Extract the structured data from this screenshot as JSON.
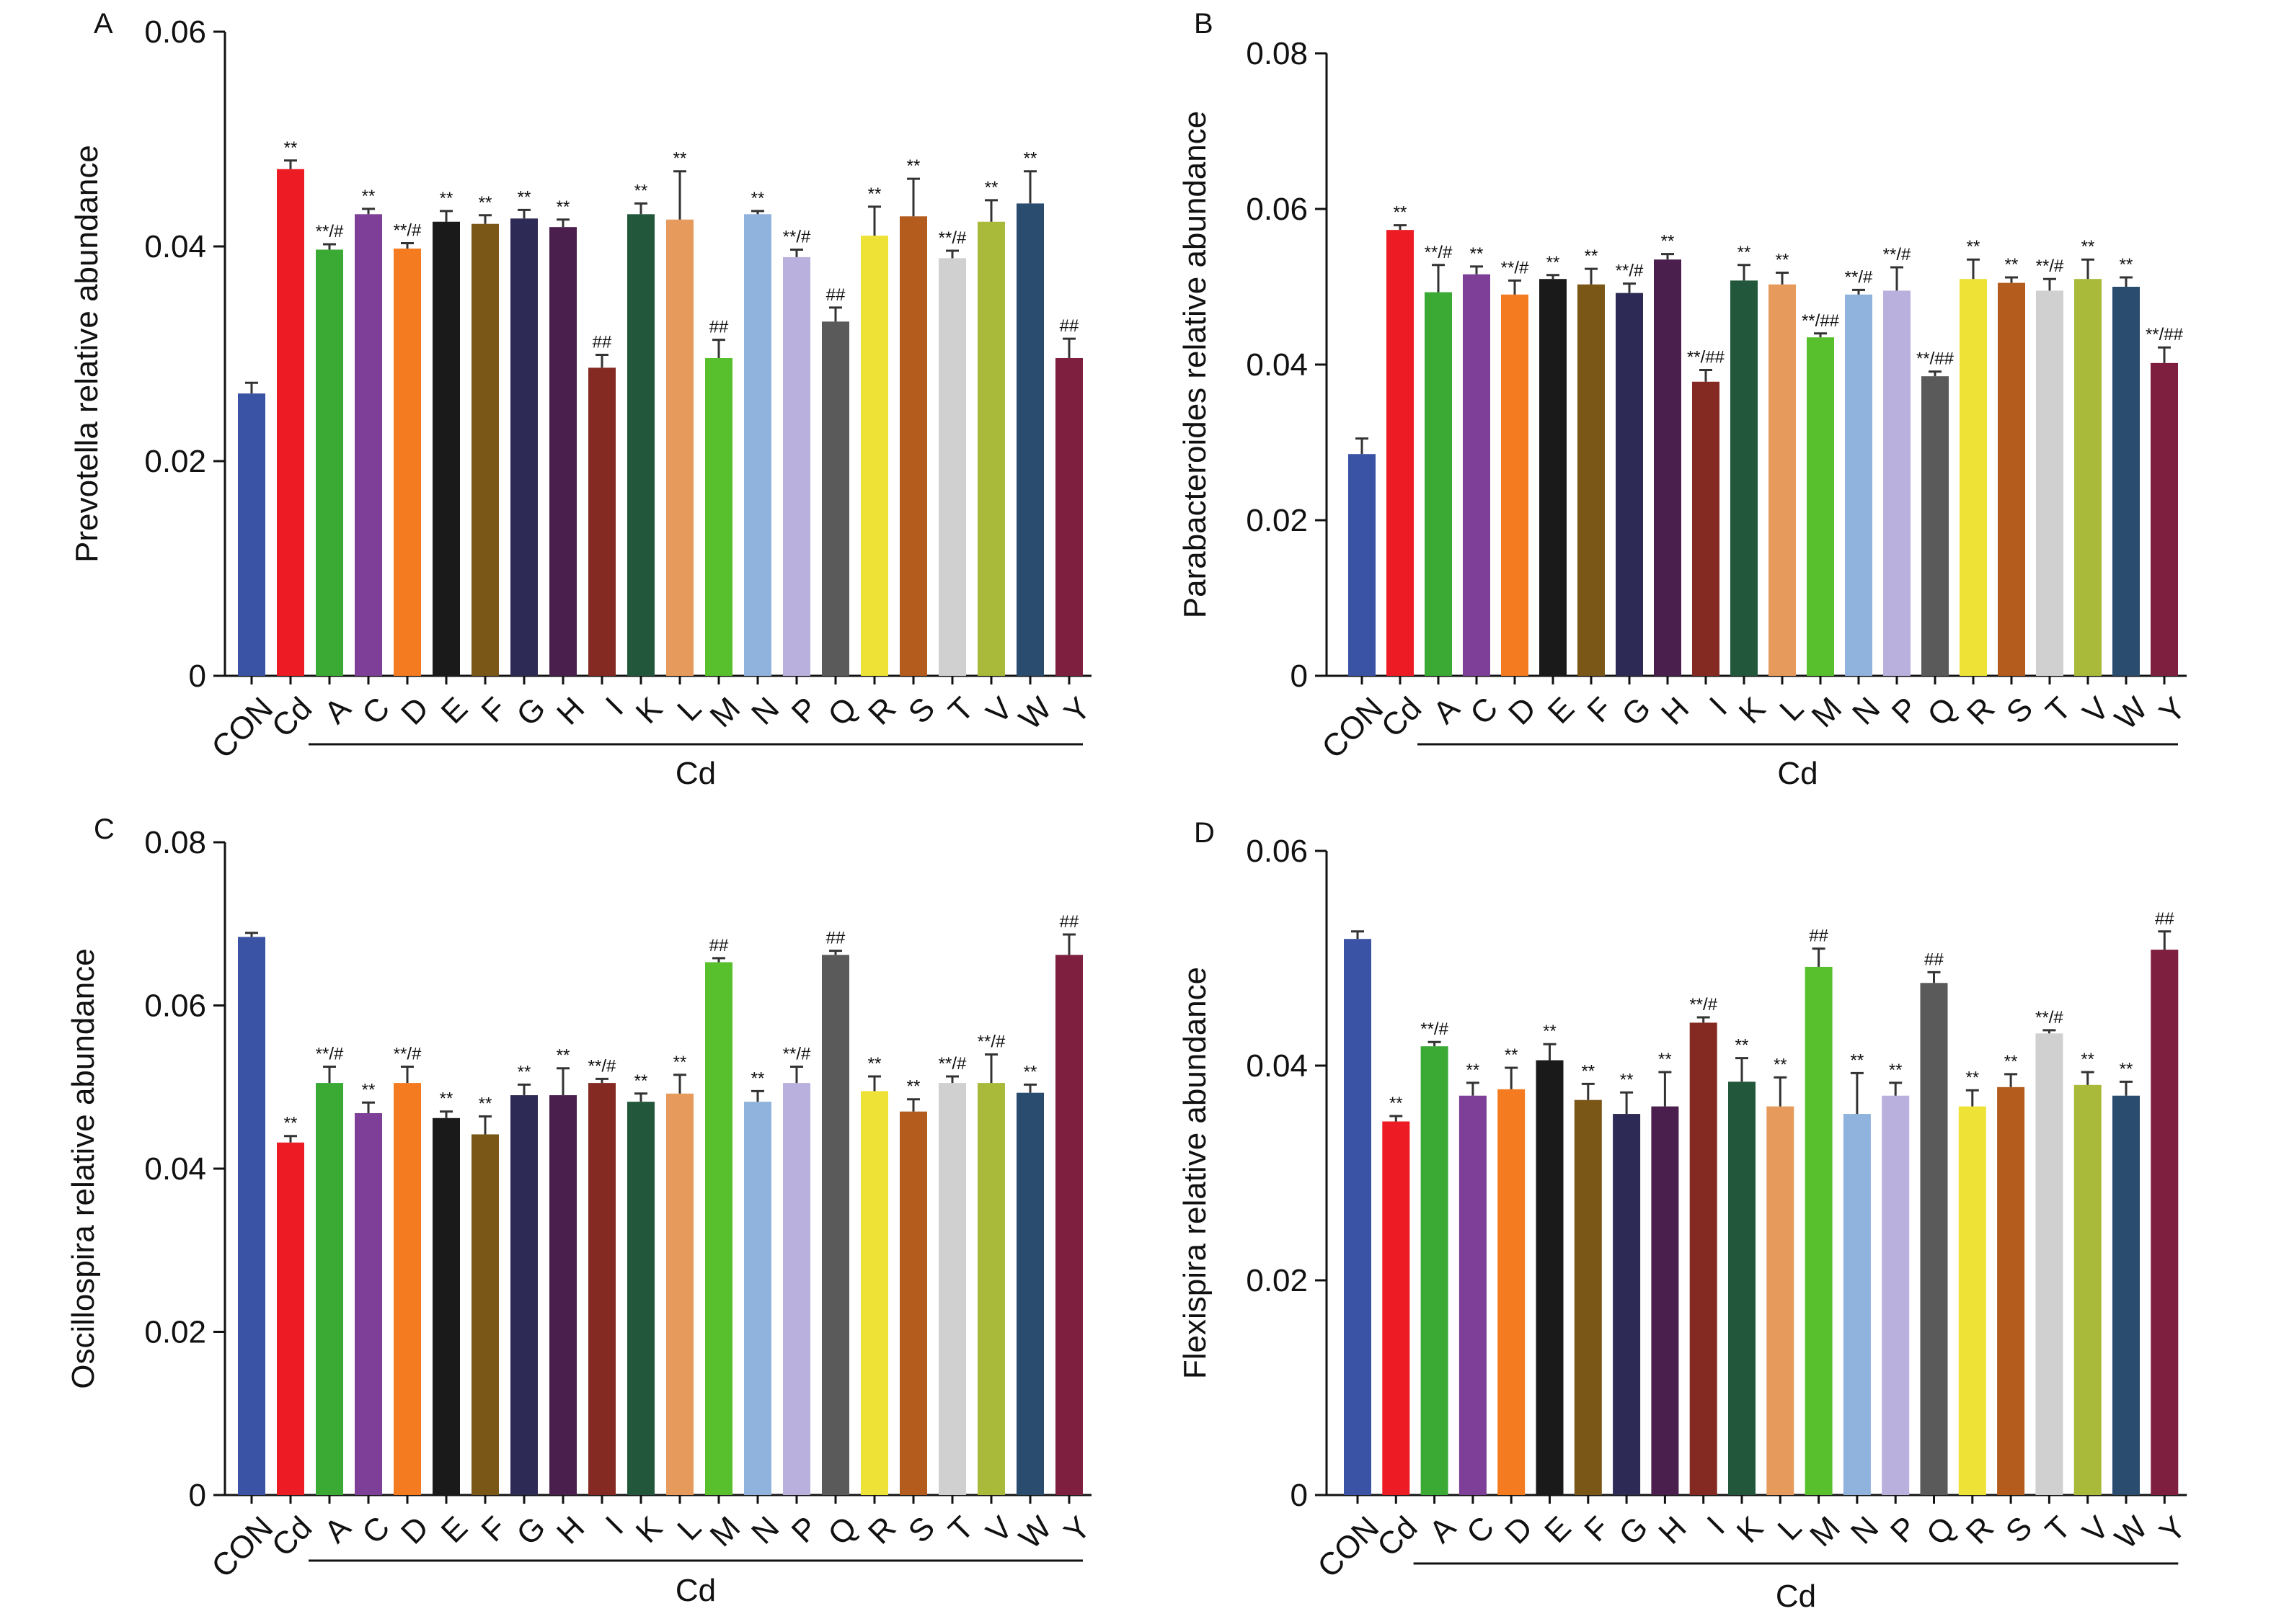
{
  "chart_data": [
    {
      "panel": "A",
      "type": "bar",
      "ylabel": "Prevotella relative abundance",
      "xlabel": "Cd",
      "ylim": [
        0,
        0.06
      ],
      "yticks": [
        "0",
        "0.02",
        "0.04",
        "0.06"
      ],
      "ytick_values": [
        0,
        0.02,
        0.04,
        0.06
      ],
      "categories": [
        "CON",
        "Cd",
        "A",
        "C",
        "D",
        "E",
        "F",
        "G",
        "H",
        "I",
        "K",
        "L",
        "M",
        "N",
        "P",
        "Q",
        "R",
        "S",
        "T",
        "V",
        "W",
        "Y"
      ],
      "values": [
        0.0263,
        0.0472,
        0.0397,
        0.043,
        0.0398,
        0.0423,
        0.0421,
        0.0426,
        0.0418,
        0.0287,
        0.043,
        0.0425,
        0.0296,
        0.043,
        0.039,
        0.033,
        0.041,
        0.0428,
        0.0389,
        0.0423,
        0.044,
        0.0296
      ],
      "errors": [
        0.001,
        0.0008,
        0.0005,
        0.0005,
        0.0005,
        0.001,
        0.0008,
        0.0008,
        0.0007,
        0.0012,
        0.001,
        0.0045,
        0.0017,
        0.0003,
        0.0007,
        0.0013,
        0.0027,
        0.0035,
        0.0007,
        0.002,
        0.003,
        0.0018
      ],
      "annotations": [
        "",
        "**",
        "**/#",
        "**",
        "**/#",
        "**",
        "**",
        "**",
        "**",
        "##",
        "**",
        "**",
        "##",
        "**",
        "**/#",
        "##",
        "**",
        "**",
        "**/#",
        "**",
        "**",
        "##"
      ]
    },
    {
      "panel": "B",
      "type": "bar",
      "ylabel": "Parabacteroides relative abundance",
      "xlabel": "Cd",
      "ylim": [
        0,
        0.08
      ],
      "yticks": [
        "0",
        "0.02",
        "0.04",
        "0.06",
        "0.08"
      ],
      "ytick_values": [
        0,
        0.02,
        0.04,
        0.06,
        0.08
      ],
      "categories": [
        "CON",
        "Cd",
        "A",
        "C",
        "D",
        "E",
        "F",
        "G",
        "H",
        "I",
        "K",
        "L",
        "M",
        "N",
        "P",
        "Q",
        "R",
        "S",
        "T",
        "V",
        "W",
        "Y"
      ],
      "values": [
        0.0285,
        0.0573,
        0.0493,
        0.0516,
        0.049,
        0.051,
        0.0503,
        0.0492,
        0.0535,
        0.0378,
        0.0508,
        0.0503,
        0.0435,
        0.049,
        0.0495,
        0.0385,
        0.051,
        0.0505,
        0.0495,
        0.051,
        0.05,
        0.0402
      ],
      "errors": [
        0.002,
        0.0006,
        0.0035,
        0.001,
        0.0018,
        0.0005,
        0.002,
        0.0012,
        0.0007,
        0.0015,
        0.002,
        0.0015,
        0.0005,
        0.0006,
        0.003,
        0.0006,
        0.0025,
        0.0007,
        0.0015,
        0.0025,
        0.0012,
        0.002
      ],
      "annotations": [
        "",
        "**",
        "**/#",
        "**",
        "**/#",
        "**",
        "**",
        "**/#",
        "**",
        "**/##",
        "**",
        "**",
        "**/##",
        "**/#",
        "**/#",
        "**/##",
        "**",
        "**",
        "**/#",
        "**",
        "**",
        "**/##"
      ]
    },
    {
      "panel": "C",
      "type": "bar",
      "ylabel": "Oscillospira relative abundance",
      "xlabel": "Cd",
      "ylim": [
        0,
        0.08
      ],
      "yticks": [
        "0",
        "0.02",
        "0.04",
        "0.06",
        "0.08"
      ],
      "ytick_values": [
        0,
        0.02,
        0.04,
        0.06,
        0.08
      ],
      "categories": [
        "CON",
        "Cd",
        "A",
        "C",
        "D",
        "E",
        "F",
        "G",
        "H",
        "I",
        "K",
        "L",
        "M",
        "N",
        "P",
        "Q",
        "R",
        "S",
        "T",
        "V",
        "W",
        "Y"
      ],
      "values": [
        0.0684,
        0.0432,
        0.0505,
        0.0468,
        0.0505,
        0.0462,
        0.0442,
        0.049,
        0.049,
        0.0505,
        0.0482,
        0.0492,
        0.0653,
        0.0482,
        0.0505,
        0.0662,
        0.0495,
        0.047,
        0.0505,
        0.0505,
        0.0493,
        0.0662
      ],
      "errors": [
        0.0005,
        0.0008,
        0.002,
        0.0013,
        0.002,
        0.0008,
        0.0022,
        0.0013,
        0.0033,
        0.0005,
        0.001,
        0.0023,
        0.0005,
        0.0013,
        0.002,
        0.0005,
        0.0018,
        0.0015,
        0.0008,
        0.0035,
        0.001,
        0.0025
      ],
      "annotations": [
        "",
        "**",
        "**/#",
        "**",
        "**/#",
        "**",
        "**",
        "**",
        "**",
        "**/#",
        "**",
        "**",
        "##",
        "**",
        "**/#",
        "##",
        "**",
        "**",
        "**/#",
        "**/#",
        "**",
        "##"
      ]
    },
    {
      "panel": "D",
      "type": "bar",
      "ylabel": "Flexispira relative abundance",
      "xlabel": "Cd",
      "ylim": [
        0,
        0.06
      ],
      "yticks": [
        "0",
        "0.02",
        "0.04",
        "0.06"
      ],
      "ytick_values": [
        0,
        0.02,
        0.04,
        0.06
      ],
      "categories": [
        "CON",
        "Cd",
        "A",
        "C",
        "D",
        "E",
        "F",
        "G",
        "H",
        "I",
        "K",
        "L",
        "M",
        "N",
        "P",
        "Q",
        "R",
        "S",
        "T",
        "V",
        "W",
        "Y"
      ],
      "values": [
        0.0518,
        0.0348,
        0.0418,
        0.0372,
        0.0378,
        0.0405,
        0.0368,
        0.0355,
        0.0362,
        0.044,
        0.0385,
        0.0362,
        0.0492,
        0.0355,
        0.0372,
        0.0477,
        0.0362,
        0.038,
        0.043,
        0.0382,
        0.0372,
        0.0508
      ],
      "errors": [
        0.0007,
        0.0005,
        0.0004,
        0.0012,
        0.002,
        0.0015,
        0.0015,
        0.002,
        0.0032,
        0.0005,
        0.0022,
        0.0027,
        0.0017,
        0.0038,
        0.0012,
        0.001,
        0.0015,
        0.0012,
        0.0003,
        0.0012,
        0.0013,
        0.0017
      ],
      "annotations": [
        "",
        "**",
        "**/#",
        "**",
        "**",
        "**",
        "**",
        "**",
        "**",
        "**/#",
        "**",
        "**",
        "##",
        "**",
        "**",
        "##",
        "**",
        "**",
        "**/#",
        "**",
        "**",
        "##"
      ]
    }
  ],
  "panel_labels": [
    "A",
    "B",
    "C",
    "D"
  ],
  "bar_colors": [
    "#3a53a4",
    "#ed1c24",
    "#3aaa35",
    "#7e3f98",
    "#f47b20",
    "#1a1a1a",
    "#7a5617",
    "#2e2a56",
    "#4b1f4d",
    "#852a22",
    "#23573b",
    "#e69a5c",
    "#58c02d",
    "#8fb3dc",
    "#b9b0dd",
    "#5a5a5a",
    "#eee236",
    "#b35c1e",
    "#d0d0d0",
    "#a9b93a",
    "#294c6f",
    "#7e1f3f"
  ],
  "colors": {
    "axis": "#111111",
    "error_bar": "#333333",
    "text": "#111111"
  }
}
